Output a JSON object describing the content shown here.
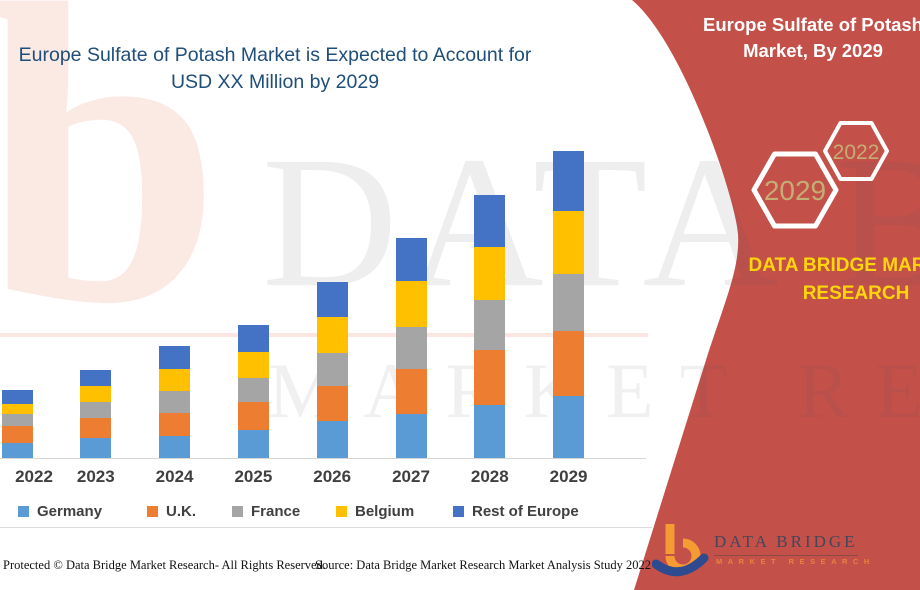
{
  "header": {
    "chart_title": "Europe Sulfate of Potash Market is Expected to Account for USD XX Million by 2029"
  },
  "right_panel": {
    "title": "Europe Sulfate of Potash Market, By 2029",
    "accent_color": "#c4504a",
    "hexagons": [
      {
        "label": "2029"
      },
      {
        "label": "2022"
      }
    ],
    "brand_text": "DATA BRIDGE MARKET RESEARCH",
    "brand_text_color": "#ffd60a",
    "hexagon_label_color": "#c6ad73"
  },
  "chart_data": {
    "type": "bar",
    "stacked": true,
    "title": "Europe Sulfate of Potash Market is Expected to Account for USD XX Million by 2029",
    "xlabel": "",
    "ylabel": "",
    "y_axis_visible": false,
    "value_unit": "USD XX Million (values masked, relative units)",
    "legend_position": "bottom",
    "categories": [
      "2022",
      "2023",
      "2024",
      "2025",
      "2026",
      "2027",
      "2028",
      "2029"
    ],
    "series": [
      {
        "name": "Germany",
        "color": "#5b9bd5",
        "values": [
          15,
          20,
          22,
          28,
          37,
          44,
          53,
          62
        ]
      },
      {
        "name": "U.K.",
        "color": "#ed7d31",
        "values": [
          17,
          20,
          23,
          28,
          35,
          45,
          55,
          65
        ]
      },
      {
        "name": "France",
        "color": "#a5a5a5",
        "values": [
          12,
          16,
          22,
          24,
          33,
          42,
          50,
          57
        ]
      },
      {
        "name": "Belgium",
        "color": "#ffc000",
        "values": [
          10,
          16,
          22,
          26,
          36,
          46,
          53,
          63
        ]
      },
      {
        "name": "Rest of Europe",
        "color": "#4472c4",
        "values": [
          14,
          16,
          23,
          27,
          35,
          43,
          52,
          60
        ]
      }
    ],
    "stack_totals": [
      68,
      88,
      112,
      133,
      176,
      220,
      263,
      307
    ]
  },
  "watermark": {
    "line1": "DATA BRIDGE",
    "line2": "MARKET RESEARCH",
    "pink_letter": "b"
  },
  "logo": {
    "name": "DATA BRIDGE",
    "subtitle": "MARKET RESEARCH"
  },
  "footer": {
    "left": "Protected © Data Bridge Market Research- All Rights Reserved.",
    "source": "Source: Data Bridge Market Research Market Analysis Study 2022"
  }
}
